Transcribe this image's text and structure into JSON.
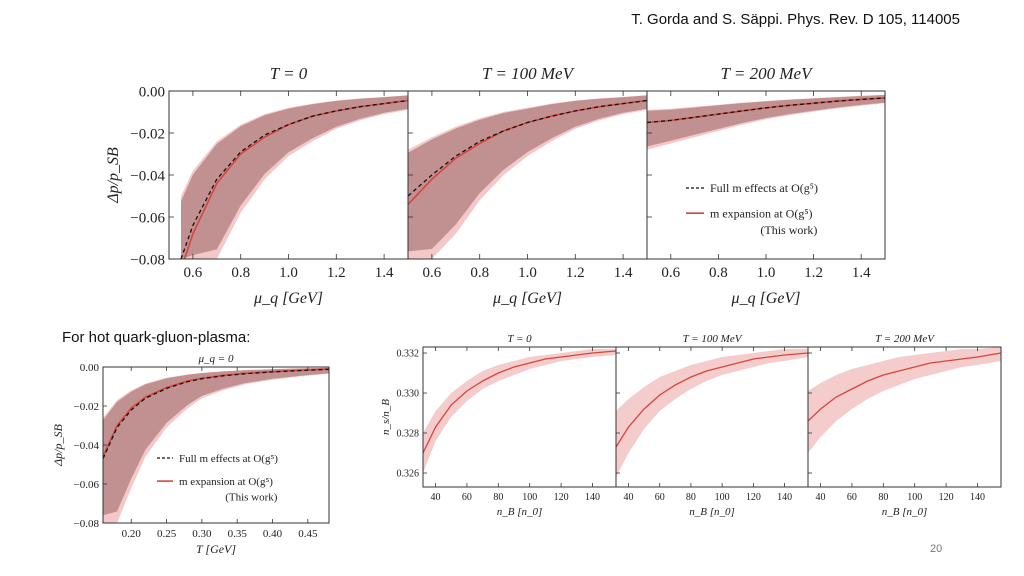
{
  "citation": "T. Gorda and S. Säppi. Phys. Rev. D 105, 114005",
  "caption": "For hot quark-gluon-plasma:",
  "page_number": "20",
  "colors": {
    "red": "#d9453c",
    "band_red": "#e99a9a",
    "band_dark": "#a06a6a",
    "black": "#111111"
  },
  "chart_data": [
    {
      "id": "pressure_mu",
      "type": "line",
      "ylabel": "Δp/p_SB",
      "xlabel": "μ_q [GeV]",
      "ylim": [
        -0.08,
        0.0
      ],
      "xlim": [
        0.5,
        1.5
      ],
      "yticks": [
        0.0,
        -0.02,
        -0.04,
        -0.06,
        -0.08
      ],
      "ytick_labels": [
        "0.00",
        "−0.02",
        "−0.04",
        "−0.06",
        "−0.08"
      ],
      "xticks": [
        0.6,
        0.8,
        1.0,
        1.2,
        1.4
      ],
      "xtick_labels": [
        "0.6",
        "0.8",
        "1.0",
        "1.2",
        "1.4"
      ],
      "legend": {
        "placement": "bottom-right of third panel",
        "dashed": "Full m effects at O(g⁵)",
        "solid": "m expansion at O(g⁵)",
        "note": "(This work)"
      },
      "panels": [
        {
          "title": "T = 0",
          "x": [
            0.55,
            0.6,
            0.7,
            0.8,
            0.9,
            1.0,
            1.1,
            1.2,
            1.3,
            1.4,
            1.5
          ],
          "full_m": [
            -0.08,
            -0.064,
            -0.042,
            -0.029,
            -0.021,
            -0.016,
            -0.012,
            -0.0095,
            -0.0075,
            -0.006,
            -0.0045
          ],
          "m_expansion": [
            -0.085,
            -0.068,
            -0.044,
            -0.03,
            -0.022,
            -0.016,
            -0.012,
            -0.0095,
            -0.0075,
            -0.006,
            -0.0045
          ],
          "band_upper": [
            -0.05,
            -0.038,
            -0.024,
            -0.016,
            -0.011,
            -0.008,
            -0.006,
            -0.0045,
            -0.0035,
            -0.0028,
            -0.002
          ],
          "band_lower": [
            -0.08,
            -0.08,
            -0.08,
            -0.058,
            -0.042,
            -0.031,
            -0.024,
            -0.018,
            -0.014,
            -0.011,
            -0.009
          ]
        },
        {
          "title": "T = 100 MeV",
          "x": [
            0.5,
            0.6,
            0.7,
            0.8,
            0.9,
            1.0,
            1.1,
            1.2,
            1.3,
            1.4,
            1.5
          ],
          "full_m": [
            -0.05,
            -0.04,
            -0.031,
            -0.024,
            -0.019,
            -0.015,
            -0.012,
            -0.0095,
            -0.0075,
            -0.006,
            -0.0045
          ],
          "m_expansion": [
            -0.054,
            -0.042,
            -0.032,
            -0.025,
            -0.019,
            -0.015,
            -0.012,
            -0.0095,
            -0.0075,
            -0.006,
            -0.0045
          ],
          "band_upper": [
            -0.028,
            -0.022,
            -0.017,
            -0.013,
            -0.01,
            -0.008,
            -0.006,
            -0.0045,
            -0.0035,
            -0.0028,
            -0.002
          ],
          "band_lower": [
            -0.08,
            -0.08,
            -0.068,
            -0.052,
            -0.04,
            -0.031,
            -0.024,
            -0.018,
            -0.014,
            -0.011,
            -0.009
          ]
        },
        {
          "title": "T = 200 MeV",
          "x": [
            0.5,
            0.6,
            0.7,
            0.8,
            0.9,
            1.0,
            1.1,
            1.2,
            1.3,
            1.4,
            1.5
          ],
          "full_m": [
            -0.015,
            -0.014,
            -0.0125,
            -0.011,
            -0.0095,
            -0.008,
            -0.0068,
            -0.0058,
            -0.0048,
            -0.004,
            -0.0033
          ],
          "m_expansion": [
            -0.015,
            -0.014,
            -0.0125,
            -0.011,
            -0.0095,
            -0.008,
            -0.0068,
            -0.0058,
            -0.0048,
            -0.004,
            -0.0033
          ],
          "band_upper": [
            -0.009,
            -0.0085,
            -0.0075,
            -0.0065,
            -0.0055,
            -0.0047,
            -0.004,
            -0.0034,
            -0.0028,
            -0.0023,
            -0.0018
          ],
          "band_lower": [
            -0.028,
            -0.025,
            -0.022,
            -0.019,
            -0.016,
            -0.0135,
            -0.0115,
            -0.0098,
            -0.0083,
            -0.007,
            -0.0058
          ]
        }
      ]
    },
    {
      "id": "pressure_T",
      "type": "line",
      "title": "μ_q = 0",
      "ylabel": "Δp/p_SB",
      "xlabel": "T [GeV]",
      "ylim": [
        -0.08,
        0.0
      ],
      "xlim": [
        0.16,
        0.48
      ],
      "yticks": [
        0.0,
        -0.02,
        -0.04,
        -0.06,
        -0.08
      ],
      "ytick_labels": [
        "0.00",
        "−0.02",
        "−0.04",
        "−0.06",
        "−0.08"
      ],
      "xticks": [
        0.2,
        0.25,
        0.3,
        0.35,
        0.4,
        0.45
      ],
      "xtick_labels": [
        "0.20",
        "0.25",
        "0.30",
        "0.35",
        "0.40",
        "0.45"
      ],
      "legend": {
        "placement": "center-right",
        "dashed": "Full m effects at O(g⁵)",
        "solid": "m expansion at O(g⁵)",
        "note": "(This work)"
      },
      "x": [
        0.16,
        0.18,
        0.2,
        0.22,
        0.25,
        0.28,
        0.3,
        0.33,
        0.36,
        0.4,
        0.44,
        0.48
      ],
      "full_m": [
        -0.047,
        -0.031,
        -0.022,
        -0.016,
        -0.011,
        -0.0075,
        -0.006,
        -0.0045,
        -0.0035,
        -0.0025,
        -0.0018,
        -0.0012
      ],
      "m_expansion": [
        -0.046,
        -0.03,
        -0.021,
        -0.0155,
        -0.0105,
        -0.0072,
        -0.0058,
        -0.0043,
        -0.0033,
        -0.0024,
        -0.0017,
        -0.0011
      ],
      "band_upper": [
        -0.026,
        -0.017,
        -0.012,
        -0.0085,
        -0.0055,
        -0.0038,
        -0.003,
        -0.0022,
        -0.0016,
        -0.0011,
        -0.0007,
        -0.0004
      ],
      "band_lower": [
        -0.08,
        -0.08,
        -0.062,
        -0.046,
        -0.031,
        -0.021,
        -0.016,
        -0.012,
        -0.009,
        -0.0065,
        -0.0048,
        -0.0035
      ]
    },
    {
      "id": "density_ratio",
      "type": "line",
      "ylabel": "n_s/n_B",
      "xlabel": "n_B [n_0]",
      "ylim": [
        0.3253,
        0.3323
      ],
      "xlim": [
        32,
        155
      ],
      "yticks": [
        0.326,
        0.328,
        0.33,
        0.332
      ],
      "ytick_labels": [
        "0.326",
        "0.328",
        "0.330",
        "0.332"
      ],
      "xticks": [
        40,
        60,
        80,
        100,
        120,
        140
      ],
      "xtick_labels": [
        "40",
        "60",
        "80",
        "100",
        "120",
        "140"
      ],
      "panels": [
        {
          "title": "T = 0",
          "x": [
            32,
            40,
            50,
            60,
            70,
            80,
            90,
            100,
            110,
            120,
            130,
            140,
            155
          ],
          "center": [
            0.327,
            0.3283,
            0.3294,
            0.3301,
            0.3306,
            0.331,
            0.3313,
            0.3315,
            0.3317,
            0.3318,
            0.3319,
            0.332,
            0.3321
          ],
          "upper": [
            0.328,
            0.3291,
            0.33,
            0.3306,
            0.3311,
            0.3314,
            0.3316,
            0.3318,
            0.3319,
            0.332,
            0.3321,
            0.3322,
            0.3322
          ],
          "lower": [
            0.326,
            0.3276,
            0.3288,
            0.3296,
            0.3302,
            0.3306,
            0.3309,
            0.3312,
            0.3314,
            0.3316,
            0.3317,
            0.3318,
            0.3319
          ]
        },
        {
          "title": "T = 100 MeV",
          "x": [
            32,
            40,
            50,
            60,
            70,
            80,
            90,
            100,
            110,
            120,
            130,
            140,
            155
          ],
          "center": [
            0.3273,
            0.3283,
            0.3292,
            0.3299,
            0.3304,
            0.3308,
            0.3311,
            0.3313,
            0.3315,
            0.3317,
            0.3318,
            0.3319,
            0.332
          ],
          "upper": [
            0.3291,
            0.3297,
            0.3303,
            0.3308,
            0.3311,
            0.3314,
            0.3316,
            0.3318,
            0.3319,
            0.332,
            0.3321,
            0.3322,
            0.3322
          ],
          "lower": [
            0.3258,
            0.327,
            0.3282,
            0.3291,
            0.3297,
            0.3302,
            0.3306,
            0.3309,
            0.3311,
            0.3313,
            0.3315,
            0.3316,
            0.3318
          ]
        },
        {
          "title": "T = 200 MeV",
          "x": [
            32,
            40,
            50,
            60,
            70,
            80,
            90,
            100,
            110,
            120,
            130,
            140,
            155
          ],
          "center": [
            0.3286,
            0.3292,
            0.3298,
            0.3302,
            0.3306,
            0.3309,
            0.3311,
            0.3313,
            0.3315,
            0.3316,
            0.3317,
            0.3318,
            0.332
          ],
          "upper": [
            0.3301,
            0.3305,
            0.3309,
            0.3312,
            0.3314,
            0.3316,
            0.3318,
            0.3319,
            0.332,
            0.3321,
            0.3322,
            0.3322,
            0.3323
          ],
          "lower": [
            0.327,
            0.3278,
            0.3286,
            0.3292,
            0.3297,
            0.3301,
            0.3304,
            0.3307,
            0.3309,
            0.3311,
            0.3313,
            0.3314,
            0.3316
          ]
        }
      ]
    }
  ]
}
